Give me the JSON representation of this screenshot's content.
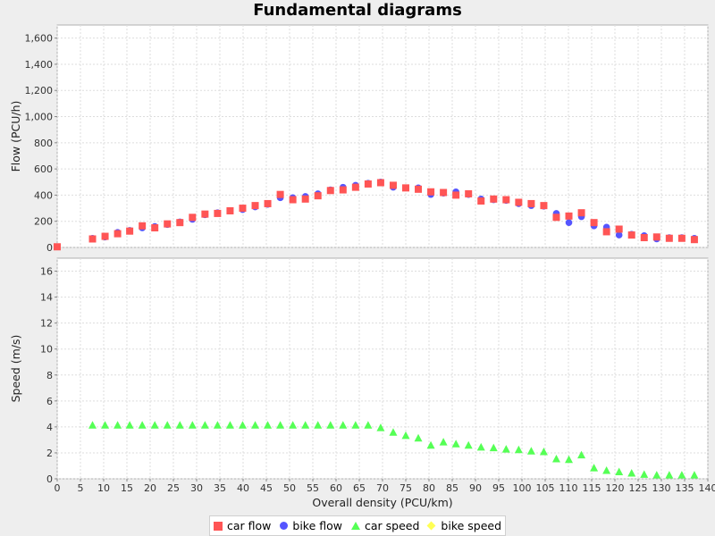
{
  "chart_data": [
    {
      "type": "scatter",
      "title": "Fundamental diagrams",
      "xlabel": "Overall density (PCU/km)",
      "ylabel": "Flow (PCU/h)",
      "xlim": [
        0,
        140
      ],
      "ylim": [
        0,
        1700
      ],
      "xticks": [
        0,
        5,
        10,
        15,
        20,
        25,
        30,
        35,
        40,
        45,
        50,
        55,
        60,
        65,
        70,
        75,
        80,
        85,
        90,
        95,
        100,
        105,
        110,
        115,
        120,
        125,
        130,
        135,
        140
      ],
      "yticks": [
        0,
        200,
        400,
        600,
        800,
        1000,
        1200,
        1400,
        1600
      ],
      "ytick_labels": [
        "0",
        "200",
        "400",
        "600",
        "800",
        "1,000",
        "1,200",
        "1,400",
        "1,600"
      ],
      "grid": true,
      "series": [
        {
          "name": "car flow",
          "x": [
            0,
            7.6,
            10.3,
            13.0,
            15.6,
            18.3,
            21.0,
            23.7,
            26.4,
            29.1,
            31.8,
            34.5,
            37.2,
            39.9,
            42.6,
            45.3,
            48.0,
            50.7,
            53.4,
            56.1,
            58.8,
            61.5,
            64.2,
            66.9,
            69.6,
            72.3,
            75.0,
            77.7,
            80.4,
            83.1,
            85.8,
            88.5,
            91.2,
            93.9,
            96.6,
            99.3,
            102.0,
            104.7,
            107.4,
            110.1,
            112.8,
            115.5,
            118.2,
            120.9,
            123.6,
            126.3,
            129.0,
            131.7,
            134.4,
            137.1
          ],
          "y": [
            5,
            65,
            85,
            105,
            125,
            165,
            150,
            180,
            190,
            230,
            255,
            260,
            280,
            300,
            320,
            335,
            405,
            365,
            370,
            395,
            435,
            440,
            460,
            485,
            495,
            475,
            455,
            445,
            425,
            420,
            400,
            410,
            355,
            370,
            365,
            345,
            335,
            320,
            230,
            240,
            265,
            190,
            120,
            140,
            95,
            75,
            80,
            70,
            70,
            60
          ]
        },
        {
          "name": "bike flow",
          "x": [
            7.6,
            10.3,
            13.0,
            15.6,
            18.3,
            21.0,
            23.7,
            26.4,
            29.1,
            31.8,
            34.5,
            37.2,
            39.9,
            42.6,
            45.3,
            48.0,
            50.7,
            53.4,
            56.1,
            58.8,
            61.5,
            64.2,
            66.9,
            69.6,
            72.3,
            75.0,
            77.7,
            80.4,
            83.1,
            85.8,
            88.5,
            91.2,
            93.9,
            96.6,
            99.3,
            102.0,
            104.7,
            107.4,
            110.1,
            112.8,
            115.5,
            118.2,
            120.9,
            123.6,
            126.3,
            129.0,
            131.7,
            134.4,
            137.1
          ],
          "y": [
            70,
            80,
            115,
            130,
            150,
            160,
            175,
            195,
            215,
            250,
            265,
            280,
            290,
            310,
            330,
            380,
            380,
            390,
            410,
            440,
            460,
            475,
            490,
            500,
            460,
            455,
            455,
            405,
            415,
            425,
            405,
            370,
            365,
            360,
            335,
            320,
            315,
            260,
            190,
            235,
            165,
            155,
            95,
            100,
            90,
            65,
            75,
            75,
            70
          ]
        }
      ]
    },
    {
      "type": "scatter",
      "xlabel": "Overall density (PCU/km)",
      "ylabel": "Speed (m/s)",
      "xlim": [
        0,
        140
      ],
      "ylim": [
        0,
        17
      ],
      "yticks": [
        0,
        2,
        4,
        6,
        8,
        10,
        12,
        14,
        16
      ],
      "ytick_labels": [
        "0",
        "2",
        "4",
        "6",
        "8",
        "10",
        "12",
        "14",
        "16"
      ],
      "grid": true,
      "series": [
        {
          "name": "car speed",
          "x": [
            7.6,
            10.3,
            13.0,
            15.6,
            18.3,
            21.0,
            23.7,
            26.4,
            29.1,
            31.8,
            34.5,
            37.2,
            39.9,
            42.6,
            45.3,
            48.0,
            50.7,
            53.4,
            56.1,
            58.8,
            61.5,
            64.2,
            66.9,
            69.6,
            72.3,
            75.0,
            77.7,
            80.4,
            83.1,
            85.8,
            88.5,
            91.2,
            93.9,
            96.6,
            99.3,
            102.0,
            104.7,
            107.4,
            110.1,
            112.8,
            115.5,
            118.2,
            120.9,
            123.6,
            126.3,
            129.0,
            131.7,
            134.4,
            137.1
          ],
          "y": [
            4.15,
            4.15,
            4.15,
            4.15,
            4.15,
            4.15,
            4.15,
            4.15,
            4.15,
            4.15,
            4.15,
            4.15,
            4.15,
            4.15,
            4.15,
            4.15,
            4.15,
            4.15,
            4.15,
            4.15,
            4.15,
            4.15,
            4.15,
            3.95,
            3.6,
            3.35,
            3.15,
            2.6,
            2.85,
            2.7,
            2.6,
            2.45,
            2.4,
            2.3,
            2.25,
            2.15,
            2.1,
            1.55,
            1.5,
            1.85,
            0.85,
            0.65,
            0.55,
            0.45,
            0.35,
            0.3,
            0.3,
            0.3,
            0.3
          ]
        },
        {
          "name": "bike speed",
          "x": [],
          "y": []
        }
      ]
    }
  ],
  "legend": {
    "position": "bottom",
    "items": [
      {
        "label": "car flow",
        "shape": "square",
        "color": "#ff5555"
      },
      {
        "label": "bike flow",
        "shape": "circle",
        "color": "#5555ff"
      },
      {
        "label": "car speed",
        "shape": "triangle",
        "color": "#55ff55"
      },
      {
        "label": "bike speed",
        "shape": "diamond",
        "color": "#ffff55"
      }
    ]
  },
  "colors": {
    "car_flow": "#ff5555",
    "bike_flow": "#5555ff",
    "car_speed": "#55ff55",
    "bike_speed": "#ffff55",
    "plot_background": "#ffffff",
    "grid": "#dddddd"
  }
}
